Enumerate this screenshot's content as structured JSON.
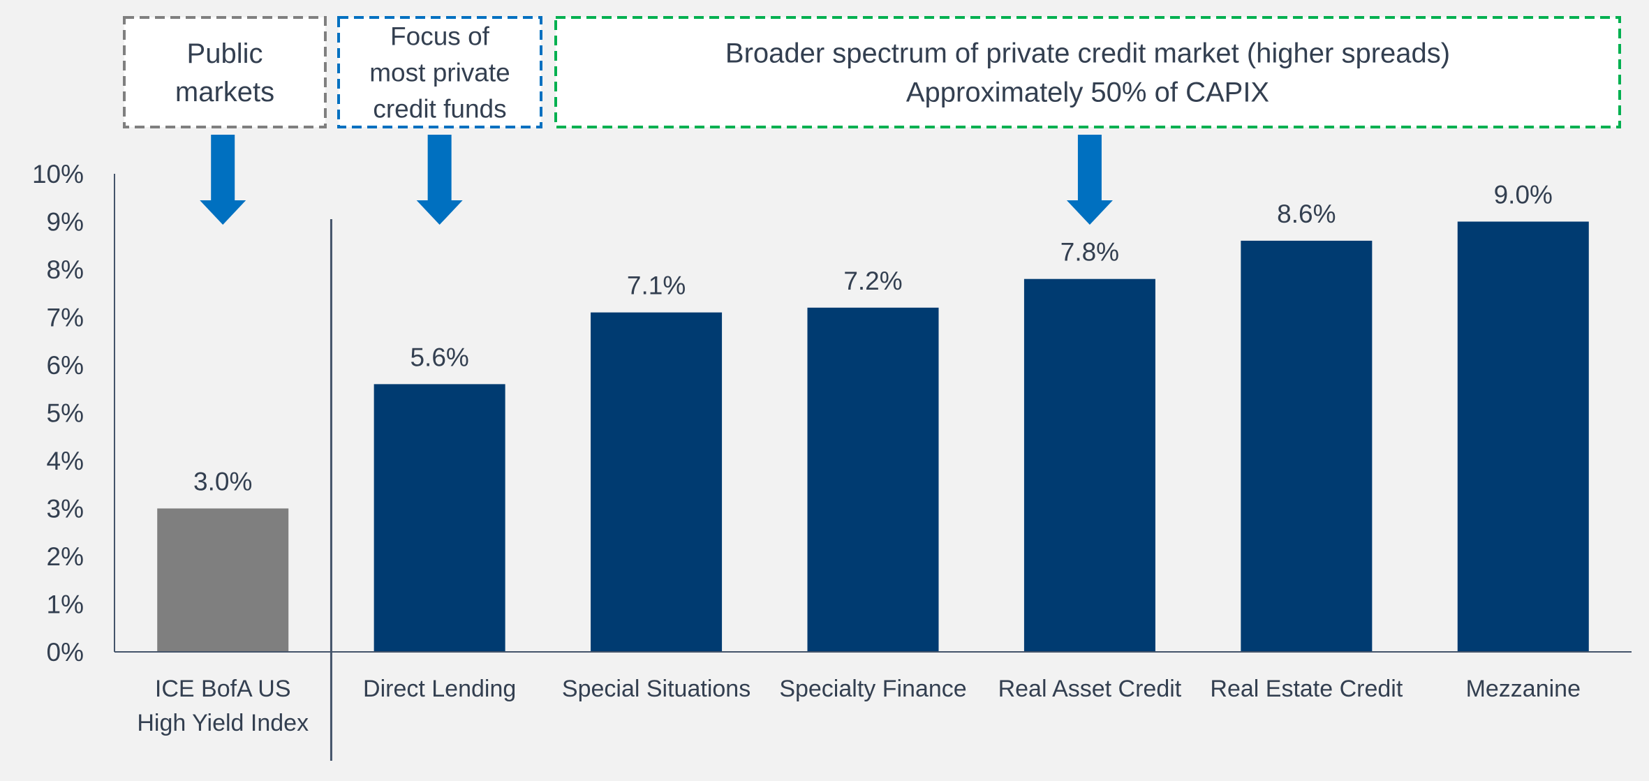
{
  "colors": {
    "background": "#f2f2f2",
    "private_bar": "#003b71",
    "public_bar": "#7f7f7f",
    "arrow": "#0070c0",
    "text": "#333f50",
    "axis": "#44546a",
    "callout_public_border": "#7f7f7f",
    "callout_focus_border": "#0070c0",
    "callout_broad_border": "#00b050"
  },
  "callouts": [
    {
      "id": "public",
      "lines": [
        "Public",
        "markets"
      ],
      "border_color": "#7f7f7f",
      "arrow_category": "ICE BofA US High Yield Index"
    },
    {
      "id": "focus",
      "lines": [
        "Focus of",
        "most private",
        "credit funds"
      ],
      "border_color": "#0070c0",
      "arrow_category": "Direct Lending"
    },
    {
      "id": "broad",
      "lines": [
        "Broader spectrum of private credit market (higher spreads)",
        "Approximately 50% of CAPIX"
      ],
      "border_color": "#00b050",
      "arrow_category": "Real Asset Credit"
    }
  ],
  "chart_data": {
    "type": "bar",
    "title": "",
    "xlabel": "",
    "ylabel": "",
    "ylim": [
      0,
      10
    ],
    "y_ticks": [
      "0%",
      "1%",
      "2%",
      "3%",
      "4%",
      "5%",
      "6%",
      "7%",
      "8%",
      "9%",
      "10%"
    ],
    "grid": false,
    "categories": [
      [
        "ICE BofA US",
        "High Yield Index"
      ],
      [
        "Direct Lending"
      ],
      [
        "Special Situations"
      ],
      [
        "Specialty Finance"
      ],
      [
        "Real Asset Credit"
      ],
      [
        "Real Estate Credit"
      ],
      [
        "Mezzanine"
      ]
    ],
    "values": [
      3.0,
      5.6,
      7.1,
      7.2,
      7.8,
      8.6,
      9.0
    ],
    "data_labels": [
      "3.0%",
      "5.6%",
      "7.1%",
      "7.2%",
      "7.8%",
      "8.6%",
      "9.0%"
    ],
    "bar_groups": [
      "public",
      "private",
      "private",
      "private",
      "private",
      "private",
      "private"
    ]
  }
}
